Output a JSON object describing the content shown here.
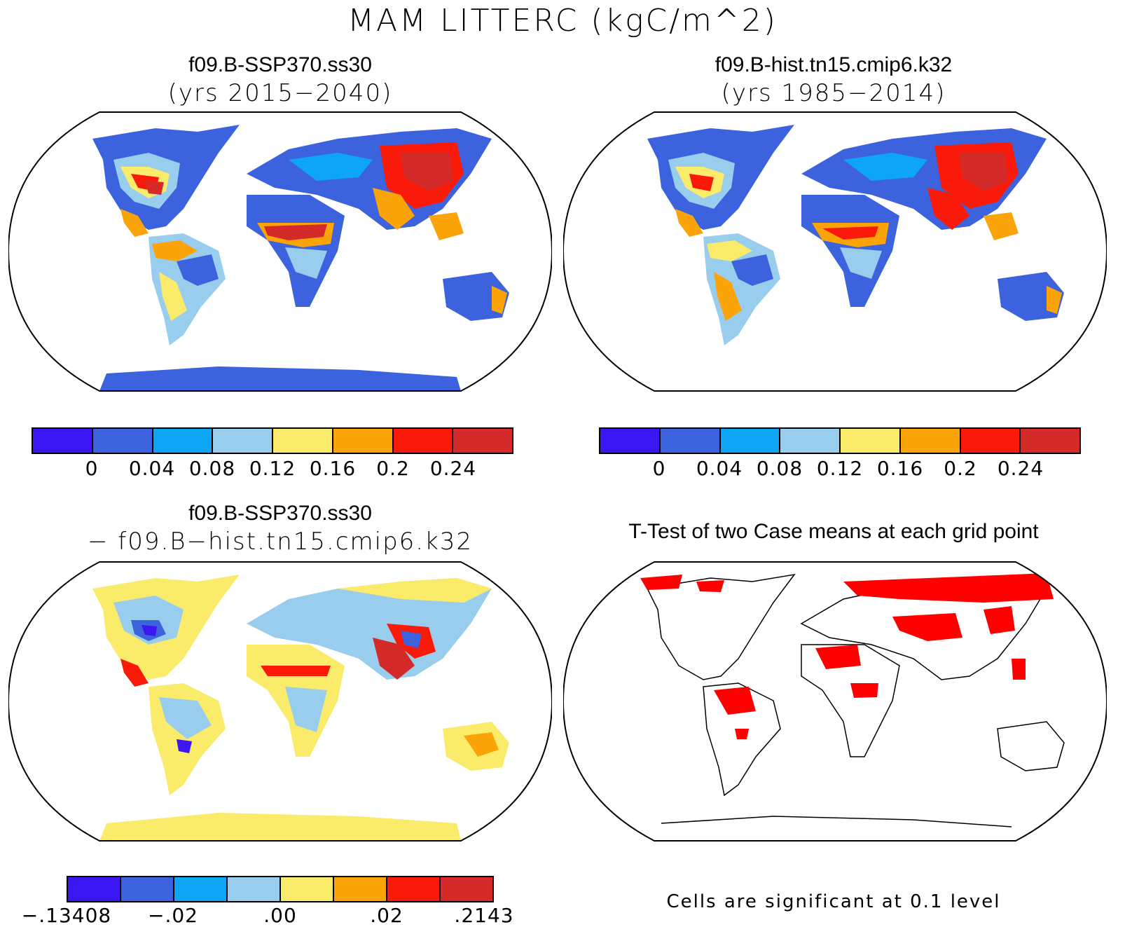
{
  "title": "MAM LITTERC (kgC/m^2)",
  "panels": [
    {
      "title": "f09.B-SSP370.ss30",
      "subtitle": "(yrs 2015−2040)"
    },
    {
      "title": "f09.B-hist.tn15.cmip6.k32",
      "subtitle": "(yrs 1985−2014)"
    },
    {
      "title": "f09.B-SSP370.ss30",
      "subtitle": "− f09.B−hist.tn15.cmip6.k32"
    },
    {
      "title": "T-Test of two Case means at each grid point",
      "subtitle": ""
    }
  ],
  "colorbar_colors": [
    "#3a16f0",
    "#3d62de",
    "#0ea5f5",
    "#99cdee",
    "#faeb6a",
    "#fba409",
    "#fa1a0a",
    "#d42a29"
  ],
  "colorbar_labels": [
    "0",
    "0.04",
    "0.08",
    "0.12",
    "0.16",
    "0.2",
    "0.24"
  ],
  "diff_colorbar_labels": [
    "−.13408",
    "−.02",
    ".00",
    ".02",
    ".2143"
  ],
  "significance_color": "#ff0000",
  "significance_note": "Cells are significant at 0.1 level"
}
